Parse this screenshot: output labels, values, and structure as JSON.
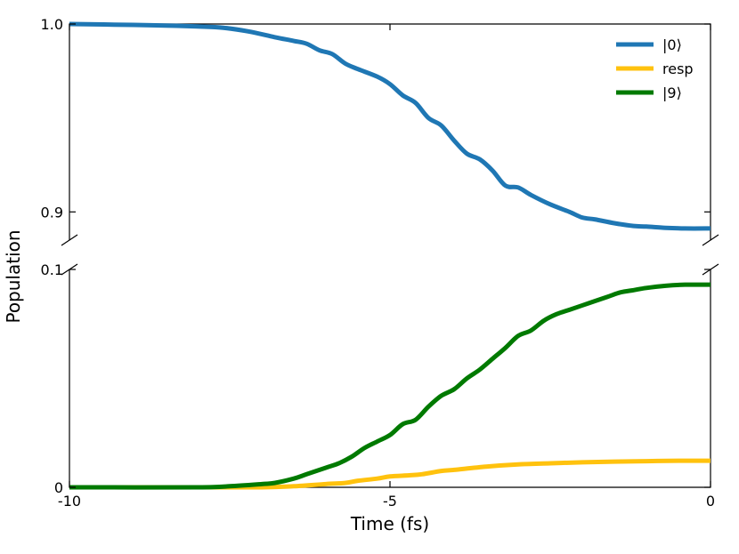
{
  "chart_data": {
    "type": "line",
    "xlabel": "Time (fs)",
    "ylabel": "Population",
    "xlim": [
      -10,
      0
    ],
    "x_ticks": [
      {
        "value": -10,
        "label": "-10"
      },
      {
        "value": -5,
        "label": "-5"
      },
      {
        "value": 0,
        "label": "0"
      }
    ],
    "broken_y_axis": true,
    "top_panel": {
      "ylim": [
        0.885,
        1.0
      ],
      "y_ticks": [
        {
          "value": 0.9,
          "label": "0.9"
        },
        {
          "value": 1.0,
          "label": "1.0"
        }
      ]
    },
    "bottom_panel": {
      "ylim": [
        0,
        0.1
      ],
      "y_ticks": [
        {
          "value": 0,
          "label": "0"
        },
        {
          "value": 0.1,
          "label": "0.1"
        }
      ]
    },
    "legend_position": "top-right",
    "grid": false,
    "series": [
      {
        "name": "|0⟩",
        "panel": "top",
        "color": "#1f77b4",
        "x": [
          -10,
          -9,
          -8.5,
          -8,
          -7.6,
          -7.2,
          -6.8,
          -6.5,
          -6.3,
          -6.1,
          -5.9,
          -5.7,
          -5.5,
          -5.2,
          -5,
          -4.8,
          -4.6,
          -4.4,
          -4.2,
          -4,
          -3.8,
          -3.6,
          -3.4,
          -3.2,
          -3,
          -2.8,
          -2.5,
          -2.2,
          -2,
          -1.8,
          -1.5,
          -1.2,
          -1,
          -0.7,
          -0.4,
          0
        ],
        "values": [
          1.0,
          0.9995,
          0.9992,
          0.9987,
          0.998,
          0.996,
          0.993,
          0.991,
          0.9895,
          0.986,
          0.984,
          0.979,
          0.976,
          0.972,
          0.968,
          0.962,
          0.958,
          0.95,
          0.946,
          0.938,
          0.931,
          0.928,
          0.922,
          0.914,
          0.913,
          0.909,
          0.904,
          0.9,
          0.897,
          0.896,
          0.894,
          0.8925,
          0.8922,
          0.8915,
          0.8912,
          0.8912
        ]
      },
      {
        "name": "resp",
        "panel": "bottom",
        "color": "#ffc20e",
        "x": [
          -10,
          -8,
          -7,
          -6.5,
          -6,
          -5.7,
          -5.5,
          -5.2,
          -5,
          -4.7,
          -4.5,
          -4.2,
          -4,
          -3.5,
          -3,
          -2.5,
          -2,
          -1.5,
          -1,
          -0.5,
          0
        ],
        "values": [
          0,
          0,
          0,
          0.0005,
          0.0015,
          0.002,
          0.003,
          0.004,
          0.005,
          0.0055,
          0.006,
          0.0075,
          0.008,
          0.0095,
          0.0105,
          0.011,
          0.0115,
          0.0118,
          0.012,
          0.0122,
          0.0122
        ]
      },
      {
        "name": "|9⟩",
        "panel": "bottom",
        "color": "#007a00",
        "x": [
          -10,
          -8,
          -7.5,
          -7,
          -6.8,
          -6.5,
          -6.3,
          -6,
          -5.8,
          -5.6,
          -5.4,
          -5.2,
          -5,
          -4.8,
          -4.6,
          -4.4,
          -4.2,
          -4,
          -3.8,
          -3.6,
          -3.4,
          -3.2,
          -3,
          -2.8,
          -2.6,
          -2.4,
          -2.2,
          -2,
          -1.8,
          -1.6,
          -1.4,
          -1.2,
          -1,
          -0.7,
          -0.4,
          0
        ],
        "values": [
          0,
          0,
          0.0005,
          0.0015,
          0.002,
          0.004,
          0.006,
          0.009,
          0.011,
          0.014,
          0.018,
          0.021,
          0.024,
          0.029,
          0.031,
          0.037,
          0.042,
          0.045,
          0.05,
          0.054,
          0.059,
          0.064,
          0.0695,
          0.072,
          0.0765,
          0.0795,
          0.0815,
          0.0835,
          0.0855,
          0.0875,
          0.0895,
          0.0905,
          0.0915,
          0.0925,
          0.093,
          0.093
        ]
      }
    ]
  }
}
